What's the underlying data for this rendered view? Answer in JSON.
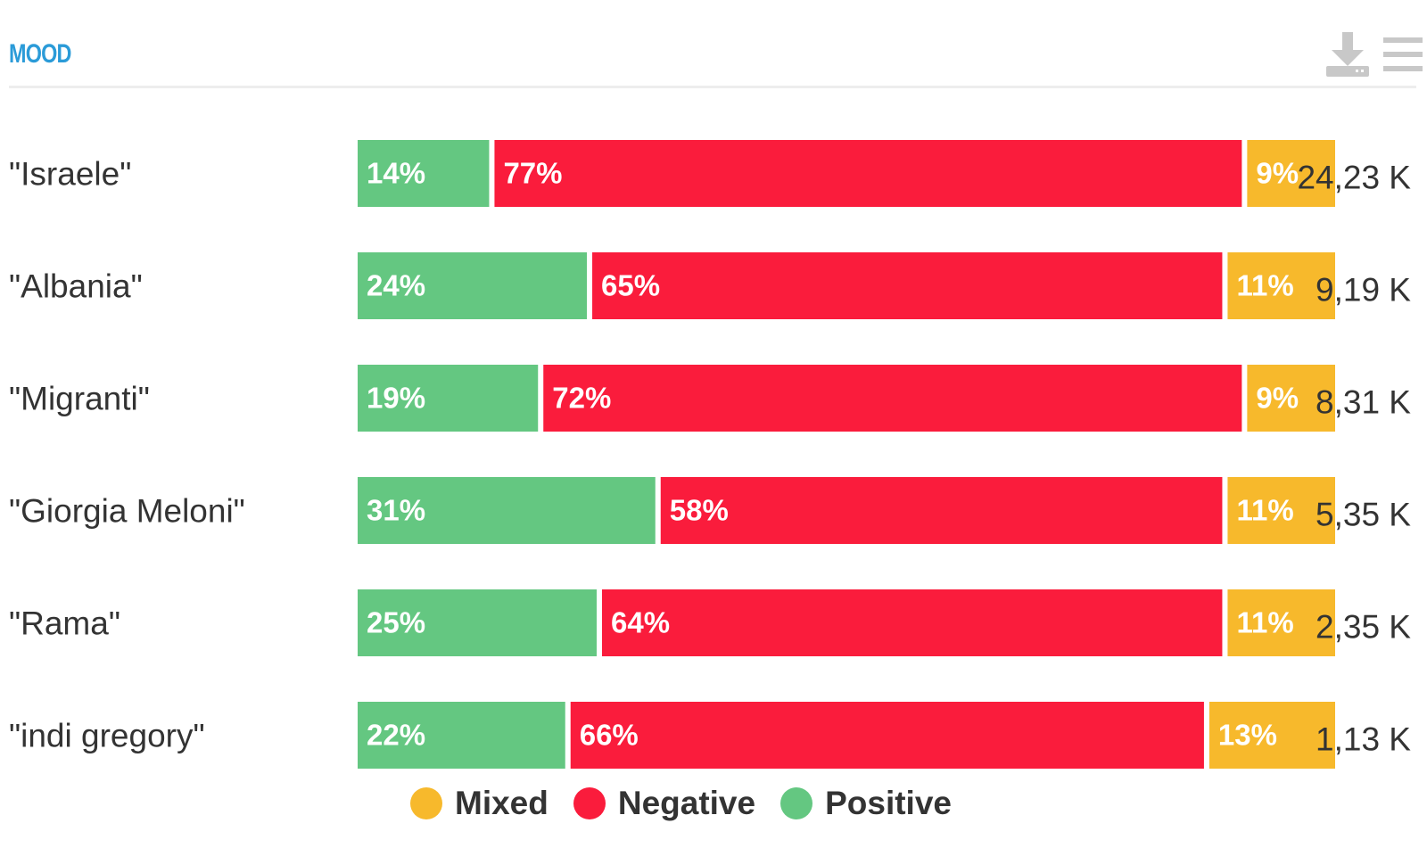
{
  "header": {
    "title": "MOOD",
    "download_icon": "download-icon",
    "menu_icon": "hamburger-menu-icon"
  },
  "colors": {
    "title": "#2b9bd8",
    "positive": "#64c781",
    "negative": "#fa1c3c",
    "mixed": "#f7b92c",
    "text": "#333333",
    "icon": "#c8c8c8"
  },
  "chart_data": {
    "type": "bar",
    "orientation": "horizontal",
    "stacked": "percent",
    "title": "MOOD",
    "categories": [
      "\"Israele\"",
      "\"Albania\"",
      "\"Migranti\"",
      "\"Giorgia Meloni\"",
      "\"Rama\"",
      "\"indi gregory\""
    ],
    "series": [
      {
        "name": "Positive",
        "color": "#64c781",
        "values": [
          14,
          24,
          19,
          31,
          25,
          22
        ],
        "labels": [
          "14%",
          "24%",
          "19%",
          "31%",
          "25%",
          "22%"
        ]
      },
      {
        "name": "Negative",
        "color": "#fa1c3c",
        "values": [
          77,
          65,
          72,
          58,
          64,
          66
        ],
        "labels": [
          "77%",
          "65%",
          "72%",
          "58%",
          "64%",
          "66%"
        ]
      },
      {
        "name": "Mixed",
        "color": "#f7b92c",
        "values": [
          9,
          11,
          9,
          11,
          11,
          13
        ],
        "labels": [
          "9%",
          "11%",
          "9%",
          "11%",
          "11%",
          "13%"
        ]
      }
    ],
    "totals": [
      "24,23 K",
      "9,19 K",
      "8,31 K",
      "5,35 K",
      "2,35 K",
      "1,13 K"
    ],
    "legend": [
      {
        "name": "Mixed",
        "color": "#f7b92c"
      },
      {
        "name": "Negative",
        "color": "#fa1c3c"
      },
      {
        "name": "Positive",
        "color": "#64c781"
      }
    ],
    "legend_position": "bottom",
    "xlim": [
      0,
      100
    ],
    "grid": false
  }
}
